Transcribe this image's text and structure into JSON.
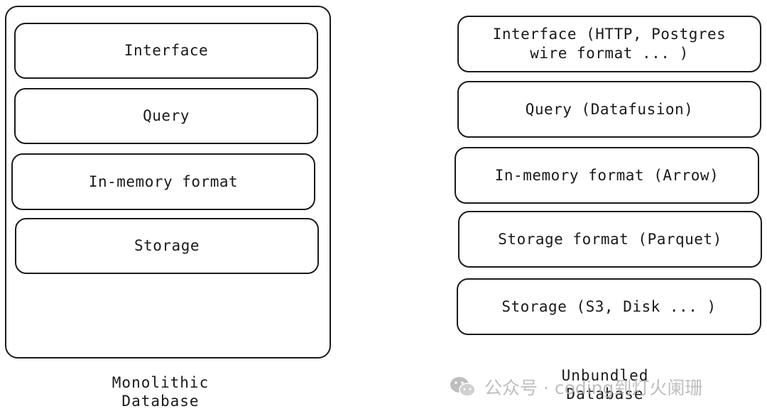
{
  "monolithic": {
    "layers": [
      "Interface",
      "Query",
      "In-memory format",
      "Storage"
    ],
    "caption_line1": "Monolithic",
    "caption_line2": "Database"
  },
  "unbundled": {
    "layers": [
      "Interface (HTTP, Postgres wire format ... )",
      "Query (Datafusion)",
      "In-memory format (Arrow)",
      "Storage format (Parquet)",
      "Storage (S3, Disk ... )"
    ],
    "caption_line1": "Unbundled",
    "caption_line2": "Database"
  },
  "watermark": {
    "text": "公众号 · coding到灯火阑珊",
    "icon": "wechat-icon"
  }
}
